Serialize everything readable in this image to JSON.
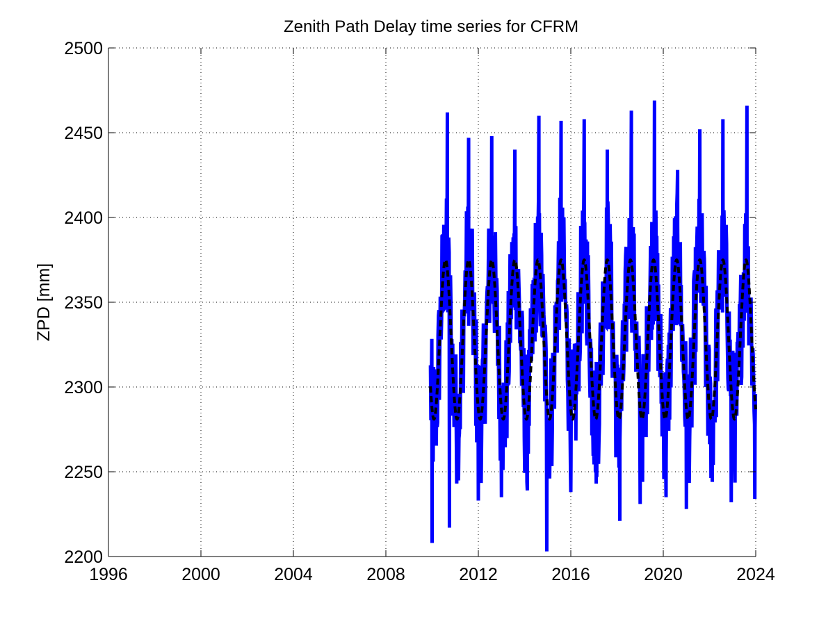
{
  "chart_data": {
    "type": "line",
    "title": "Zenith Path Delay time series for CFRM",
    "xlabel": "",
    "ylabel": "ZPD [mm]",
    "xlim": [
      1996,
      2024
    ],
    "ylim": [
      2200,
      2500
    ],
    "xticks": [
      1996,
      2000,
      2004,
      2008,
      2012,
      2016,
      2020,
      2024
    ],
    "yticks": [
      2200,
      2250,
      2300,
      2350,
      2400,
      2450,
      2500
    ],
    "xtick_labels": [
      "1996",
      "2000",
      "2004",
      "2008",
      "2012",
      "2016",
      "2020",
      "2024"
    ],
    "ytick_labels": [
      "2200",
      "2250",
      "2300",
      "2350",
      "2400",
      "2450",
      "2500"
    ],
    "grid": true,
    "legend": "none",
    "series": [
      {
        "kind": "observed",
        "color": "#0000ff",
        "line_style": "solid",
        "x_range": [
          2009.93,
          2024.0
        ],
        "x_sampling": "weekly",
        "mean": 2328,
        "seasonal_amplitude": 47,
        "noise_amplitude": 40,
        "peak_month": "July",
        "min": 2203,
        "max": 2469,
        "maxima": [
          {
            "x": 2010.66,
            "y": 2462
          },
          {
            "x": 2011.58,
            "y": 2447
          },
          {
            "x": 2012.58,
            "y": 2448
          },
          {
            "x": 2013.58,
            "y": 2440
          },
          {
            "x": 2014.62,
            "y": 2460
          },
          {
            "x": 2015.58,
            "y": 2457
          },
          {
            "x": 2016.58,
            "y": 2458
          },
          {
            "x": 2017.58,
            "y": 2440
          },
          {
            "x": 2018.62,
            "y": 2463
          },
          {
            "x": 2019.62,
            "y": 2469
          },
          {
            "x": 2020.62,
            "y": 2428
          },
          {
            "x": 2021.58,
            "y": 2452
          },
          {
            "x": 2022.58,
            "y": 2458
          },
          {
            "x": 2023.62,
            "y": 2466
          }
        ],
        "minima": [
          {
            "x": 2010.0,
            "y": 2208
          },
          {
            "x": 2010.75,
            "y": 2217
          },
          {
            "x": 2012.0,
            "y": 2233
          },
          {
            "x": 2013.0,
            "y": 2235
          },
          {
            "x": 2014.12,
            "y": 2239
          },
          {
            "x": 2014.96,
            "y": 2203
          },
          {
            "x": 2016.0,
            "y": 2238
          },
          {
            "x": 2017.1,
            "y": 2243
          },
          {
            "x": 2018.12,
            "y": 2221
          },
          {
            "x": 2019.0,
            "y": 2231
          },
          {
            "x": 2020.12,
            "y": 2235
          },
          {
            "x": 2021.0,
            "y": 2228
          },
          {
            "x": 2022.12,
            "y": 2244
          },
          {
            "x": 2022.94,
            "y": 2232
          },
          {
            "x": 2023.96,
            "y": 2234
          }
        ]
      },
      {
        "kind": "model",
        "color": "#000000",
        "line_style": "dashed",
        "x_range": [
          2009.93,
          2024.0
        ],
        "function": "mean - amplitude * cos(2*pi*(x - 2010.08))",
        "mean": 2328,
        "amplitude": 47,
        "max": 2375,
        "min": 2281
      }
    ]
  }
}
